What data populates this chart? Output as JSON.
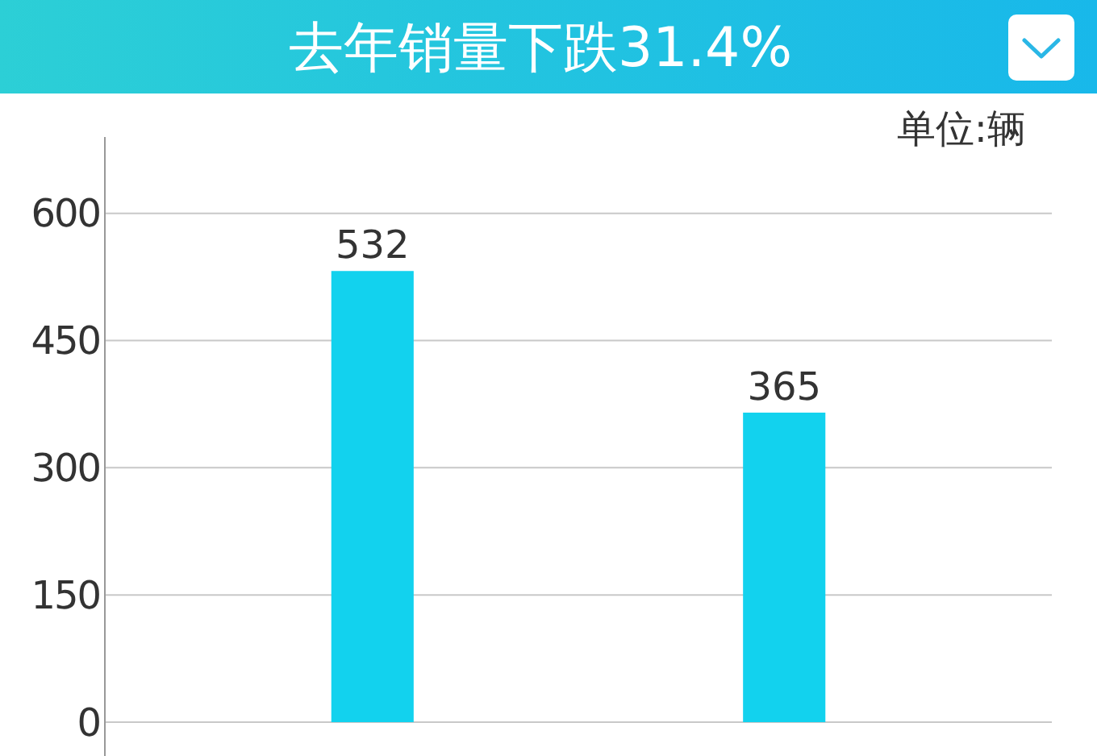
{
  "chart_data": {
    "type": "bar",
    "title": "去年销量下跌31.4%",
    "categories": [
      null,
      null
    ],
    "values": [
      532,
      365
    ],
    "color": "#12d2ee",
    "ylim": [
      0,
      690
    ],
    "yticks": [
      0,
      150,
      300,
      450,
      600
    ],
    "grid": "y",
    "data_labels": true,
    "annotations": [
      "单位:辆"
    ]
  }
}
